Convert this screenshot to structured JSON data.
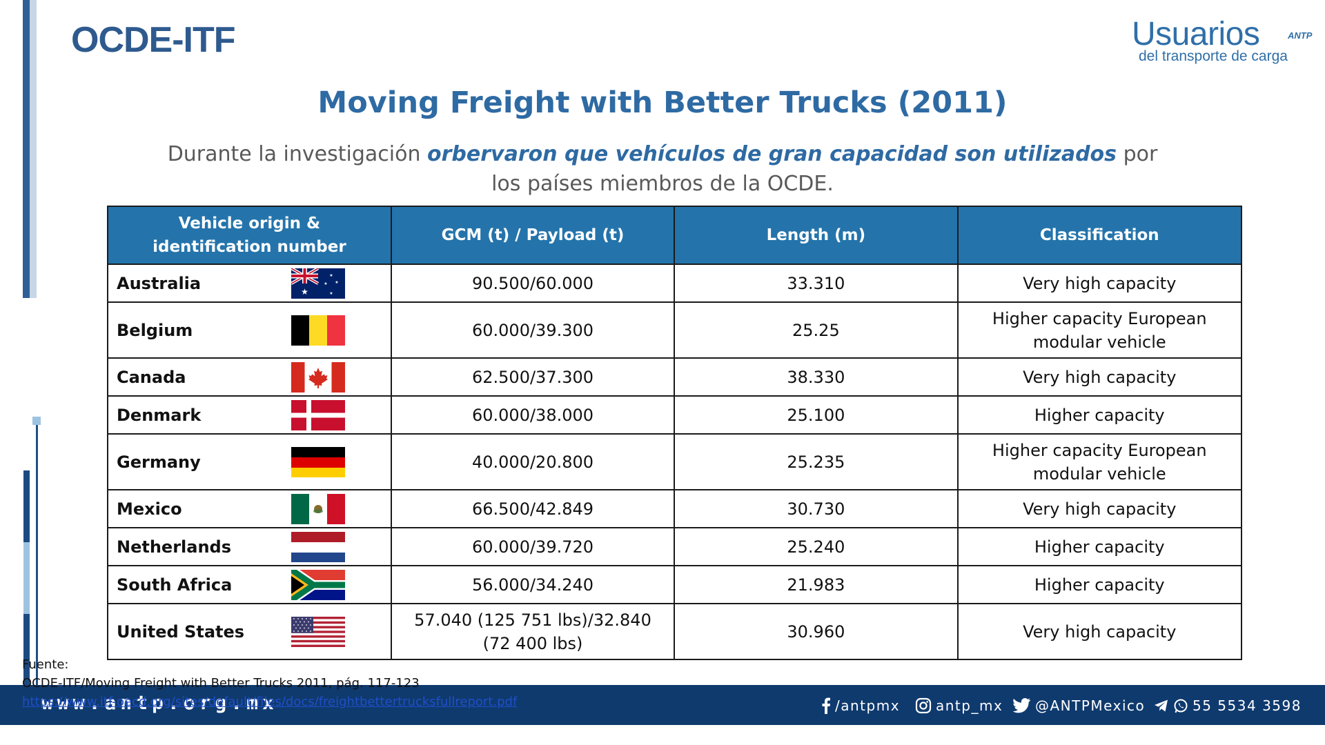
{
  "header": {
    "brand": "OCDE-ITF",
    "logo_main": "Usuarios",
    "logo_badge": "ANTP",
    "logo_sub": "del transporte de carga"
  },
  "title": "Moving Freight with Better Trucks (2011)",
  "subtitle": {
    "part1": "Durante la investigación ",
    "emphasis": "orbervaron que vehículos de gran capacidad son utilizados",
    "part2": " por los países miembros de la OCDE."
  },
  "table": {
    "headers": [
      "Vehicle origin & identification number",
      "GCM (t) / Payload (t)",
      "Length (m)",
      "Classification"
    ],
    "rows": [
      {
        "country": "Australia",
        "flag": "australia-flag",
        "gcm": "90.500/60.000",
        "length": "33.310",
        "classification": "Very high capacity"
      },
      {
        "country": "Belgium",
        "flag": "belgium-flag",
        "gcm": "60.000/39.300",
        "length": "25.25",
        "classification": "Higher capacity European modular vehicle"
      },
      {
        "country": "Canada",
        "flag": "canada-flag",
        "gcm": "62.500/37.300",
        "length": "38.330",
        "classification": "Very high capacity"
      },
      {
        "country": "Denmark",
        "flag": "denmark-flag",
        "gcm": "60.000/38.000",
        "length": "25.100",
        "classification": "Higher capacity"
      },
      {
        "country": "Germany",
        "flag": "germany-flag",
        "gcm": "40.000/20.800",
        "length": "25.235",
        "classification": "Higher capacity European modular vehicle"
      },
      {
        "country": "Mexico",
        "flag": "mexico-flag",
        "gcm": "66.500/42.849",
        "length": "30.730",
        "classification": "Very high capacity"
      },
      {
        "country": "Netherlands",
        "flag": "netherlands-flag",
        "gcm": "60.000/39.720",
        "length": "25.240",
        "classification": "Higher capacity"
      },
      {
        "country": "South Africa",
        "flag": "south-africa-flag",
        "gcm": "56.000/34.240",
        "length": "21.983",
        "classification": "Higher capacity"
      },
      {
        "country": "United States",
        "flag": "united-states-flag",
        "gcm": "57.040 (125 751 lbs)/32.840 (72 400 lbs)",
        "length": "30.960",
        "classification": "Very high capacity"
      }
    ]
  },
  "source": {
    "label": "Fuente:",
    "citation": "OCDE-ITF/Moving Freight with Better Trucks 2011, pág. 117-123",
    "link": "https://www.itf-oecd.org/sites/default/files/docs/freightbettertrucksfullreport.pdf"
  },
  "footer": {
    "website": "www.antp.org.mx",
    "facebook": "/antpmx",
    "instagram": "antp_mx",
    "twitter": "@ANTPMexico",
    "phone": "55 5534 3598"
  },
  "colors": {
    "brand_blue": "#2e5a8e",
    "header_blue": "#2474ab",
    "footer_navy": "#0f3a6e"
  }
}
